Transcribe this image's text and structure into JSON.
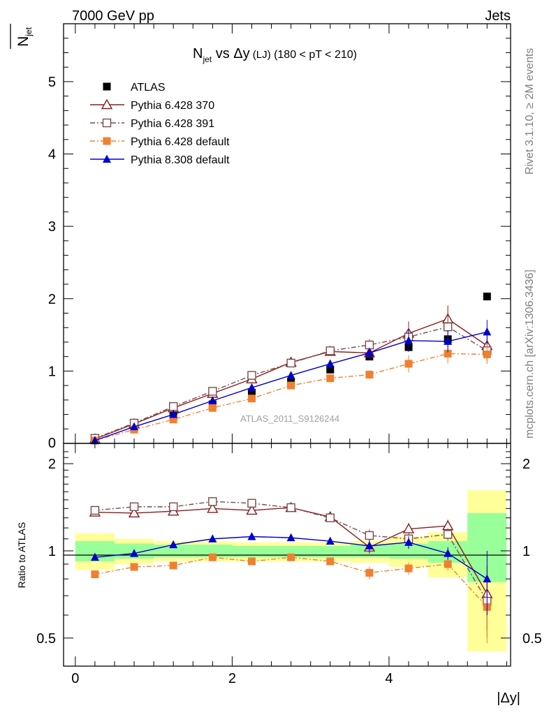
{
  "header": {
    "left": "7000 GeV pp",
    "right": "Jets"
  },
  "side": {
    "rivet": "Rivet 3.1.10, ≥ 2M events",
    "mcplots": "mcplots.cern.ch [arXiv:1306.3436]"
  },
  "main": {
    "title_main": "N",
    "title_sub": "jet",
    "title_vs": " vs Δy",
    "title_lj": " (LJ)",
    "title_range": " (180 < pT < 210)",
    "ylabel_main": "N",
    "ylabel_sub": "jet",
    "watermark": "ATLAS_2011_S9126244"
  },
  "ratio": {
    "ylabel": "Ratio to ATLAS"
  },
  "xaxis": {
    "label": "|Δy|"
  },
  "chart_data": [
    {
      "type": "scatter",
      "title": "N_jet vs Δy (LJ) (180 < pT < 210)",
      "xlabel": "|Δy|",
      "ylabel": "N_jet",
      "xlim": [
        -0.15,
        5.55
      ],
      "ylim": [
        0,
        5.8
      ],
      "yticks": [
        "1",
        "2",
        "3",
        "4",
        "5"
      ],
      "xticks": [
        "0",
        "2",
        "4"
      ],
      "x": [
        0.25,
        0.75,
        1.25,
        1.75,
        2.25,
        2.75,
        3.25,
        3.75,
        4.25,
        4.75,
        5.25
      ],
      "legend_position": "top-left",
      "series": [
        {
          "name": "ATLAS",
          "color": "#000000",
          "marker": "square",
          "line": "none",
          "values": [
            0.04,
            0.22,
            0.38,
            0.54,
            0.7,
            0.85,
            1.02,
            1.2,
            1.33,
            1.44,
            2.03
          ]
        },
        {
          "name": "Pythia 6.428 370",
          "color": "#8b1a1a",
          "marker": "open-triangle",
          "line": "solid",
          "values": [
            0.06,
            0.27,
            0.49,
            0.69,
            0.89,
            1.12,
            1.27,
            1.25,
            1.52,
            1.72,
            1.35
          ]
        },
        {
          "name": "Pythia 6.428 391",
          "color": "#7a4a4a",
          "marker": "open-square",
          "line": "dashdot",
          "values": [
            0.07,
            0.28,
            0.51,
            0.72,
            0.94,
            1.11,
            1.28,
            1.36,
            1.47,
            1.61,
            1.28
          ]
        },
        {
          "name": "Pythia 6.428 default",
          "color": "#f08030",
          "marker": "square",
          "line": "dashdot",
          "values": [
            0.04,
            0.19,
            0.33,
            0.49,
            0.62,
            0.8,
            0.9,
            0.95,
            1.1,
            1.24,
            1.23
          ]
        },
        {
          "name": "Pythia 8.308 default",
          "color": "#0000cc",
          "marker": "triangle",
          "line": "solid",
          "values": [
            0.04,
            0.23,
            0.4,
            0.59,
            0.77,
            0.94,
            1.1,
            1.25,
            1.42,
            1.41,
            1.54
          ]
        }
      ]
    },
    {
      "type": "line",
      "title": "",
      "ylabel": "Ratio to ATLAS",
      "xlabel": "|Δy|",
      "ylim": [
        0.4,
        2.35
      ],
      "yticks": [
        "0.5",
        "1",
        "2"
      ],
      "x": [
        0.25,
        0.75,
        1.25,
        1.75,
        2.25,
        2.75,
        3.25,
        3.75,
        4.25,
        4.75,
        5.25
      ],
      "bands": {
        "bins": [
          [
            0,
            0.5
          ],
          [
            0.5,
            1.0
          ],
          [
            1.0,
            1.5
          ],
          [
            1.5,
            2.0
          ],
          [
            2.0,
            2.5
          ],
          [
            2.5,
            3.0
          ],
          [
            3.0,
            3.5
          ],
          [
            3.5,
            4.0
          ],
          [
            4.0,
            4.5
          ],
          [
            4.5,
            5.0
          ],
          [
            5.0,
            5.5
          ]
        ],
        "yellow": [
          [
            0.86,
            1.15
          ],
          [
            0.9,
            1.1
          ],
          [
            0.92,
            1.08
          ],
          [
            0.92,
            1.08
          ],
          [
            0.92,
            1.07
          ],
          [
            0.92,
            1.07
          ],
          [
            0.92,
            1.07
          ],
          [
            0.91,
            1.08
          ],
          [
            0.88,
            1.12
          ],
          [
            0.81,
            1.16
          ],
          [
            0.45,
            1.62
          ]
        ],
        "green": [
          [
            0.92,
            1.08
          ],
          [
            0.94,
            1.06
          ],
          [
            0.95,
            1.05
          ],
          [
            0.95,
            1.05
          ],
          [
            0.95,
            1.04
          ],
          [
            0.95,
            1.04
          ],
          [
            0.95,
            1.04
          ],
          [
            0.95,
            1.05
          ],
          [
            0.94,
            1.06
          ],
          [
            0.91,
            1.08
          ],
          [
            0.78,
            1.35
          ]
        ]
      },
      "series": [
        {
          "name": "Pythia 6.428 370",
          "color": "#8b1a1a",
          "marker": "open-triangle",
          "line": "solid",
          "values": [
            1.36,
            1.35,
            1.37,
            1.4,
            1.38,
            1.41,
            1.31,
            1.03,
            1.19,
            1.22,
            0.71
          ]
        },
        {
          "name": "Pythia 6.428 391",
          "color": "#7a4a4a",
          "marker": "open-square",
          "line": "dashdot",
          "values": [
            1.38,
            1.42,
            1.42,
            1.48,
            1.46,
            1.41,
            1.3,
            1.13,
            1.1,
            1.14,
            0.67
          ]
        },
        {
          "name": "Pythia 6.428 default",
          "color": "#f08030",
          "marker": "square",
          "line": "dashdot",
          "values": [
            0.83,
            0.88,
            0.89,
            0.95,
            0.92,
            0.95,
            0.92,
            0.84,
            0.87,
            0.9,
            0.64
          ]
        },
        {
          "name": "Pythia 8.308 default",
          "color": "#0000cc",
          "marker": "triangle",
          "line": "solid",
          "values": [
            0.95,
            0.98,
            1.05,
            1.1,
            1.12,
            1.11,
            1.08,
            1.04,
            1.07,
            0.98,
            0.8
          ]
        }
      ]
    }
  ]
}
